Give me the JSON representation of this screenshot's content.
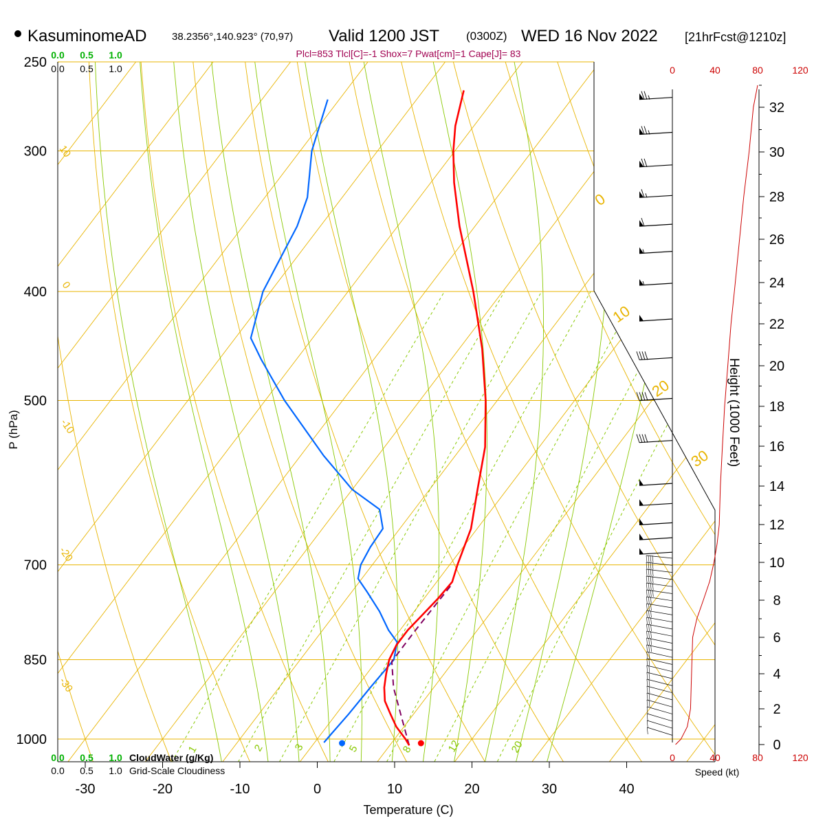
{
  "header": {
    "station": "KasuminomeAD",
    "coords": "38.2356°,140.923° (70,97)",
    "valid_main": "Valid 1200 JST",
    "valid_z": "(0300Z)",
    "date": "WED 16 Nov 2022",
    "fcst": "[21hrFcst@1210z]"
  },
  "indices": "Plcl=853 Tlcl[C]=-1 Shox=7 Pwat[cm]=1 Cape[J]= 83",
  "colors": {
    "temperature": "#ff0000",
    "dewpoint": "#0066ff",
    "parcel": "#800060",
    "isobar": "#e8b400",
    "isotherm": "#e8b400",
    "dry_adiabat": "#e8b400",
    "moist_adiabat": "#88c800",
    "mixing_ratio": "#88c800",
    "cloud": "#00b000",
    "wind_speed": "#cc0000"
  },
  "chart_data": {
    "type": "skew-t",
    "xlabel": "Temperature (C)",
    "ylabel": "P (hPa)",
    "y2label": "Height (1000 Feet)",
    "x_ticks": [
      -30,
      -20,
      -10,
      0,
      10,
      20,
      30,
      40
    ],
    "p_ticks": [
      250,
      300,
      400,
      500,
      700,
      850,
      1000
    ],
    "height_ticks": [
      0,
      2,
      4,
      6,
      8,
      10,
      12,
      14,
      16,
      18,
      20,
      22,
      24,
      26,
      28,
      30,
      32
    ],
    "mixing_ratio_labels": [
      "1",
      "2",
      "3",
      "5",
      "8",
      "12",
      "20"
    ],
    "theta_labels": [
      "10",
      "0",
      "-10",
      "-20",
      "-30"
    ],
    "theta_e_labels": [
      "0",
      "10",
      "20",
      "30"
    ],
    "cloud_water_label": "CloudWater (g/Kg)",
    "cloud_water_ticks": [
      "0.0",
      "0.5",
      "1.0"
    ],
    "cloudiness_label": "Grid-Scale Cloudiness",
    "cloudiness_ticks": [
      "0.0",
      "0.5",
      "1.0"
    ],
    "speed_label": "Speed (kt)",
    "speed_ticks": [
      "0",
      "40",
      "80",
      "120"
    ],
    "temperature": [
      [
        1013,
        12.5
      ],
      [
        1000,
        11.4
      ],
      [
        975,
        9.0
      ],
      [
        950,
        7.0
      ],
      [
        925,
        5.0
      ],
      [
        900,
        3.6
      ],
      [
        875,
        2.5
      ],
      [
        850,
        1.5
      ],
      [
        825,
        1.0
      ],
      [
        800,
        1.0
      ],
      [
        775,
        1.4
      ],
      [
        750,
        1.8
      ],
      [
        725,
        2.0
      ],
      [
        700,
        1.0
      ],
      [
        650,
        -0.8
      ],
      [
        600,
        -3.8
      ],
      [
        550,
        -7.0
      ],
      [
        500,
        -11.5
      ],
      [
        450,
        -17.0
      ],
      [
        400,
        -23.8
      ],
      [
        350,
        -32.0
      ],
      [
        320,
        -37.0
      ],
      [
        300,
        -40.2
      ],
      [
        285,
        -42.4
      ],
      [
        265,
        -44.8
      ]
    ],
    "dewpoint": [
      [
        1007,
        1.2
      ],
      [
        990,
        1.3
      ],
      [
        950,
        1.6
      ],
      [
        900,
        1.8
      ],
      [
        850,
        2.1
      ],
      [
        820,
        0.8
      ],
      [
        800,
        -1.5
      ],
      [
        770,
        -4.5
      ],
      [
        740,
        -8.0
      ],
      [
        720,
        -10.5
      ],
      [
        700,
        -11.5
      ],
      [
        675,
        -12.0
      ],
      [
        650,
        -12.2
      ],
      [
        625,
        -14.5
      ],
      [
        600,
        -20.0
      ],
      [
        560,
        -27.0
      ],
      [
        500,
        -37.5
      ],
      [
        460,
        -44.5
      ],
      [
        440,
        -48.0
      ],
      [
        400,
        -51.0
      ],
      [
        350,
        -53.0
      ],
      [
        330,
        -54.5
      ],
      [
        300,
        -58.5
      ],
      [
        270,
        -61.5
      ]
    ],
    "parcel": [
      [
        1013,
        12.5
      ],
      [
        960,
        9.0
      ],
      [
        900,
        4.8
      ],
      [
        853,
        2.0
      ],
      [
        800,
        2.0
      ],
      [
        760,
        2.1
      ],
      [
        730,
        2.2
      ]
    ],
    "surface_temperature": 13.4,
    "surface_dewpoint": 3.2,
    "wind_speed_profile_kt": [
      [
        0,
        3
      ],
      [
        0.3,
        8
      ],
      [
        1,
        14
      ],
      [
        2,
        17
      ],
      [
        4,
        18
      ],
      [
        6,
        19
      ],
      [
        7,
        23
      ],
      [
        8,
        29
      ],
      [
        9,
        35
      ],
      [
        10,
        39
      ],
      [
        11,
        42
      ],
      [
        12,
        44
      ],
      [
        14,
        45
      ],
      [
        16,
        47
      ],
      [
        18,
        49
      ],
      [
        20,
        52
      ],
      [
        22,
        55
      ],
      [
        24,
        59
      ],
      [
        26,
        63
      ],
      [
        28,
        67
      ],
      [
        30,
        72
      ],
      [
        32,
        76
      ],
      [
        33,
        80
      ]
    ],
    "wind_barbs": [
      {
        "p": 270,
        "kt": 75
      },
      {
        "p": 290,
        "kt": 75
      },
      {
        "p": 310,
        "kt": 70
      },
      {
        "p": 330,
        "kt": 65
      },
      {
        "p": 350,
        "kt": 60
      },
      {
        "p": 370,
        "kt": 55
      },
      {
        "p": 395,
        "kt": 55
      },
      {
        "p": 425,
        "kt": 50
      },
      {
        "p": 460,
        "kt": 40
      },
      {
        "p": 500,
        "kt": 40
      },
      {
        "p": 545,
        "kt": 40
      },
      {
        "p": 595,
        "kt": 50
      },
      {
        "p": 620,
        "kt": 50
      },
      {
        "p": 645,
        "kt": 50
      },
      {
        "p": 665,
        "kt": 50
      },
      {
        "p": 685,
        "kt": 50
      }
    ]
  }
}
